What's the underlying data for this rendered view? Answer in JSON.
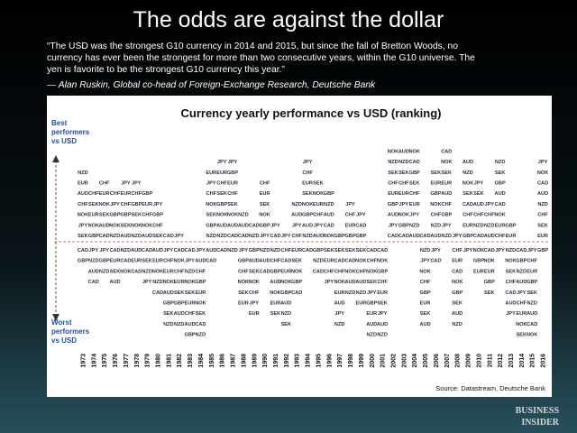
{
  "header": {
    "title": "The odds are against the dollar"
  },
  "quote": {
    "lines": [
      "“The USD was the strongest G10 currency in 2014 and 2015, but since the fall of Bretton Woods, no",
      "currency has ever been the strongest for more than two consecutive years, within the G10 universe.  The",
      "yen is favorite to be the strongest G10 currency this year.”"
    ],
    "attribution": "— Alan Ruskin, Global co-head of Foreign-Exchange Research, Deutsche Bank"
  },
  "figure": {
    "title": "Currency yearly performance vs USD (ranking)",
    "best_label": [
      "Best",
      "performers",
      "vs USD"
    ],
    "worst_label": [
      "Worst",
      "performers",
      "vs USD"
    ],
    "columns": [
      {
        "year": "1973",
        "above": [
          "NZD",
          "EUR",
          "AUD",
          "CHF",
          "NOK",
          "JPY",
          "SEK"
        ],
        "below": [
          "CAD",
          "GBP"
        ]
      },
      {
        "year": "1974",
        "above": [
          "CHF",
          "SEK",
          "EUR",
          "NOK",
          "GBP"
        ],
        "below": [
          "JPY",
          "NZD",
          "AUD",
          "CAD"
        ]
      },
      {
        "year": "1975",
        "above": [
          "CHF",
          "EUR",
          "NOK",
          "SEK",
          "AUD",
          "CAD"
        ],
        "below": [
          "JPY",
          "GBP",
          "NZD"
        ]
      },
      {
        "year": "1976",
        "above": [
          "CHF",
          "JPY",
          "GBP",
          "NOK",
          "NZD"
        ],
        "below": [
          "CAD",
          "EUR",
          "SEK",
          "AUD"
        ]
      },
      {
        "year": "1977",
        "above": [
          "JPY",
          "EUR",
          "CHF",
          "GBP",
          "SEK",
          "AUD"
        ],
        "below": [
          "NZD",
          "CAD",
          "NOK"
        ]
      },
      {
        "year": "1978",
        "above": [
          "JPY",
          "CHF",
          "GBP",
          "SEK",
          "NOK",
          "NZD"
        ],
        "below": [
          "AUD",
          "EUR",
          "CAD"
        ]
      },
      {
        "year": "1979",
        "above": [
          "GBP",
          "EUR",
          "CHF",
          "NOK",
          "AUD"
        ],
        "below": [
          "CAD",
          "SEK",
          "NZD",
          "JPY"
        ]
      },
      {
        "year": "1980",
        "above": [
          "JPY",
          "GBP",
          "CHF",
          "SEK"
        ],
        "below": [
          "AUD",
          "EUR",
          "NOK",
          "NZD",
          "CAD"
        ]
      },
      {
        "year": "1981",
        "above": [
          "CAD"
        ],
        "below": [
          "JPY",
          "CHF",
          "EUR",
          "NOK",
          "AUD",
          "GBP",
          "SEK",
          "NZD"
        ]
      },
      {
        "year": "1982",
        "above": [
          "JPY"
        ],
        "below": [
          "CAD",
          "NOK",
          "CHF",
          "EUR",
          "SEK",
          "GBP",
          "AUD",
          "NZD"
        ]
      },
      {
        "year": "1983",
        "above": [],
        "below": [
          "CAD",
          "JPY",
          "NZD",
          "NOK",
          "SEK",
          "EUR",
          "CHF",
          "AUD",
          "GBP"
        ]
      },
      {
        "year": "1984",
        "above": [],
        "below": [
          "JPY",
          "AUD",
          "CHF",
          "GBP",
          "EUR",
          "NOK",
          "SEK",
          "CAD",
          "NZD"
        ]
      },
      {
        "year": "1985",
        "above": [
          "EUR",
          "JPY",
          "CHF",
          "NOK",
          "SEK",
          "GBP",
          "NZD"
        ],
        "below": [
          "AUD",
          "CAD"
        ]
      },
      {
        "year": "1986",
        "above": [
          "JPY",
          "EUR",
          "CHF",
          "SEK",
          "GBP",
          "NOK",
          "AUD",
          "NZD"
        ],
        "below": [
          "CAD"
        ]
      },
      {
        "year": "1987",
        "above": [
          "JPY",
          "GBP",
          "EUR",
          "CHF",
          "SEK",
          "NOK",
          "AUD",
          "CAD"
        ],
        "below": [
          "NZD"
        ]
      },
      {
        "year": "1988",
        "above": [
          "NZD",
          "AUD",
          "CAD"
        ],
        "below": [
          "JPY",
          "GBP",
          "CHF",
          "NOK",
          "SEK",
          "EUR"
        ]
      },
      {
        "year": "1989",
        "above": [
          "CAD",
          "NZD"
        ],
        "below": [
          "GBP",
          "AUD",
          "SEK",
          "NOK",
          "CHF",
          "JPY",
          "EUR"
        ]
      },
      {
        "year": "1990",
        "above": [
          "CHF",
          "EUR",
          "SEK",
          "NOK",
          "GBP",
          "JPY"
        ],
        "below": [
          "NZD",
          "AUD",
          "CAD"
        ]
      },
      {
        "year": "1991",
        "above": [
          "JPY",
          "CAD"
        ],
        "below": [
          "NZD",
          "CHF",
          "GBP",
          "AUD",
          "NOK",
          "EUR",
          "SEK"
        ]
      },
      {
        "year": "1992",
        "above": [
          "JPY"
        ],
        "below": [
          "CHF",
          "CAD",
          "EUR",
          "NOK",
          "GBP",
          "AUD",
          "NZD",
          "SEK"
        ]
      },
      {
        "year": "1993",
        "above": [
          "NZD",
          "AUD",
          "JPY",
          "CHF"
        ],
        "below": [
          "EUR",
          "SEK",
          "NOK",
          "GBP",
          "CAD"
        ]
      },
      {
        "year": "1994",
        "above": [
          "JPY",
          "CHF",
          "EUR",
          "SEK",
          "NOK",
          "GBP",
          "AUD",
          "NZD"
        ],
        "below": [
          "CAD"
        ]
      },
      {
        "year": "1995",
        "above": [
          "SEK",
          "NOK",
          "EUR",
          "CHF",
          "JPY",
          "AUD"
        ],
        "below": [
          "GBP",
          "NZD",
          "CAD"
        ]
      },
      {
        "year": "1996",
        "above": [
          "GBP",
          "NZD",
          "AUD",
          "CAD",
          "NOK"
        ],
        "below": [
          "SEK",
          "EUR",
          "CHF",
          "JPY"
        ]
      },
      {
        "year": "1997",
        "above": [
          "GBP"
        ],
        "below": [
          "SEK",
          "CAD",
          "CHF",
          "NOK",
          "EUR",
          "AUD",
          "JPY",
          "NZD"
        ]
      },
      {
        "year": "1998",
        "above": [
          "JPY",
          "CHF",
          "EUR",
          "GBP"
        ],
        "below": [
          "SEK",
          "CAD",
          "NOK",
          "AUD",
          "NZD"
        ]
      },
      {
        "year": "1999",
        "above": [
          "JPY",
          "CAD",
          "GBP"
        ],
        "below": [
          "SEK",
          "NOK",
          "CHF",
          "AUD",
          "NZD",
          "EUR"
        ]
      },
      {
        "year": "2000",
        "above": [],
        "below": [
          "CAD",
          "CHF",
          "NOK",
          "SEK",
          "JPY",
          "GBP",
          "EUR",
          "AUD",
          "NZD"
        ]
      },
      {
        "year": "2001",
        "above": [],
        "below": [
          "CAD",
          "NOK",
          "GBP",
          "CHF",
          "EUR",
          "SEK",
          "JPY",
          "AUD",
          "NZD"
        ]
      },
      {
        "year": "2002",
        "above": [
          "NOK",
          "NZD",
          "SEK",
          "CHF",
          "EUR",
          "GBP",
          "AUD",
          "JPY",
          "CAD"
        ],
        "below": []
      },
      {
        "year": "2003",
        "above": [
          "AUD",
          "NZD",
          "SEK",
          "CHF",
          "EUR",
          "JPY",
          "NOK",
          "GBP",
          "CAD"
        ],
        "below": []
      },
      {
        "year": "2004",
        "above": [
          "NOK",
          "CAD",
          "GBP",
          "SEK",
          "CHF",
          "EUR",
          "JPY",
          "NZD",
          "AUD"
        ],
        "below": []
      },
      {
        "year": "2005",
        "above": [
          "CAD"
        ],
        "below": [
          "NZD",
          "JPY",
          "NOK",
          "CHF",
          "GBP",
          "EUR",
          "SEK",
          "AUD"
        ]
      },
      {
        "year": "2006",
        "above": [
          "SEK",
          "EUR",
          "GBP",
          "NOK",
          "CHF",
          "NZD",
          "AUD"
        ],
        "below": [
          "JPY",
          "CAD"
        ]
      },
      {
        "year": "2007",
        "above": [
          "CAD",
          "NOK",
          "SEK",
          "EUR",
          "AUD",
          "CHF",
          "GBP",
          "JPY",
          "NZD"
        ],
        "below": []
      },
      {
        "year": "2008",
        "above": [
          "JPY"
        ],
        "below": [
          "CHF",
          "EUR",
          "CAD",
          "NOK",
          "GBP",
          "SEK",
          "AUD",
          "NZD"
        ]
      },
      {
        "year": "2009",
        "above": [
          "AUD",
          "NZD",
          "NOK",
          "SEK",
          "CAD",
          "CHF",
          "EUR",
          "GBP"
        ],
        "below": [
          "JPY"
        ]
      },
      {
        "year": "2010",
        "above": [
          "JPY",
          "SEK",
          "AUD",
          "CHF",
          "NZD",
          "CAD"
        ],
        "below": [
          "NOK",
          "GBP",
          "EUR"
        ]
      },
      {
        "year": "2011",
        "above": [
          "JPY",
          "CHF",
          "NZD",
          "AUD"
        ],
        "below": [
          "CAD",
          "NOK",
          "EUR",
          "GBP",
          "SEK"
        ]
      },
      {
        "year": "2012",
        "above": [
          "NZD",
          "SEK",
          "GBP",
          "AUD",
          "CAD",
          "NOK",
          "EUR",
          "CHF"
        ],
        "below": [
          "JPY"
        ]
      },
      {
        "year": "2013",
        "above": [
          "GBP",
          "EUR"
        ],
        "below": [
          "NZD",
          "NOK",
          "SEK",
          "CHF",
          "CAD",
          "AUD",
          "JPY"
        ]
      },
      {
        "year": "2014",
        "above": [],
        "below": [
          "CAD",
          "GBP",
          "NZD",
          "AUD",
          "JPY",
          "CHF",
          "EUR",
          "NOK",
          "SEK"
        ]
      },
      {
        "year": "2015",
        "above": [],
        "below": [
          "JPY",
          "CHF",
          "EUR",
          "GBP",
          "SEK",
          "NZD",
          "AUD",
          "CAD",
          "NOK"
        ]
      },
      {
        "year": "2016",
        "above": [
          "JPY",
          "NOK",
          "CAD",
          "AUD",
          "NZD",
          "CHF",
          "SEK",
          "EUR"
        ],
        "below": [
          "GBP"
        ]
      }
    ],
    "source": "Source: Datastream, Deutsche Bank"
  },
  "logo": {
    "line1": "BUSINESS",
    "line2": "INSIDER"
  }
}
